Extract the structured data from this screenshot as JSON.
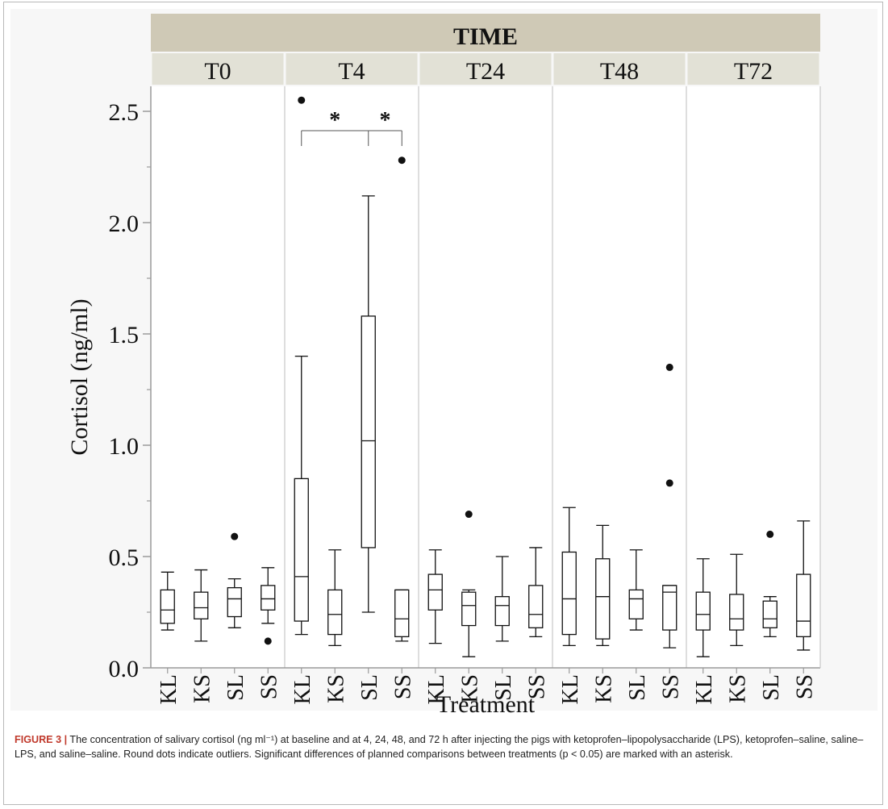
{
  "caption": {
    "label": "FIGURE 3 |",
    "text": "The concentration of salivary cortisol (ng ml⁻¹) at baseline and at 4, 24, 48, and 72 h after injecting the pigs with ketoprofen–lipopolysaccharide (LPS), ketoprofen–saline, saline–LPS, and saline–saline. Round dots indicate outliers. Significant differences of planned comparisons between treatments (p < 0.05) are marked with an asterisk."
  },
  "colors": {
    "header_dark": "#cfc9b6",
    "header_light": "#e2e1d6",
    "axis": "#9a9a9a",
    "box": "#111111"
  },
  "chart_data": {
    "type": "box",
    "title": "TIME",
    "xlabel": "Treatment",
    "ylabel": "Cortisol (ng/ml)",
    "ylim": [
      0,
      2.5
    ],
    "yticks": [
      "0.0",
      "0.5",
      "1.0",
      "1.5",
      "2.0",
      "2.5"
    ],
    "categories": [
      "KL",
      "KS",
      "SL",
      "SS"
    ],
    "panels": [
      {
        "name": "T0",
        "boxes": [
          {
            "cat": "KL",
            "whislo": 0.17,
            "q1": 0.2,
            "med": 0.26,
            "q3": 0.35,
            "whishi": 0.43,
            "fliers": []
          },
          {
            "cat": "KS",
            "whislo": 0.12,
            "q1": 0.22,
            "med": 0.27,
            "q3": 0.34,
            "whishi": 0.44,
            "fliers": []
          },
          {
            "cat": "SL",
            "whislo": 0.18,
            "q1": 0.23,
            "med": 0.31,
            "q3": 0.36,
            "whishi": 0.4,
            "fliers": [
              0.59
            ]
          },
          {
            "cat": "SS",
            "whislo": 0.2,
            "q1": 0.26,
            "med": 0.31,
            "q3": 0.37,
            "whishi": 0.45,
            "fliers": [
              0.12
            ]
          }
        ]
      },
      {
        "name": "T4",
        "boxes": [
          {
            "cat": "KL",
            "whislo": 0.15,
            "q1": 0.21,
            "med": 0.41,
            "q3": 0.85,
            "whishi": 1.4,
            "fliers": [
              2.55
            ]
          },
          {
            "cat": "KS",
            "whislo": 0.1,
            "q1": 0.15,
            "med": 0.24,
            "q3": 0.35,
            "whishi": 0.53,
            "fliers": []
          },
          {
            "cat": "SL",
            "whislo": 0.25,
            "q1": 0.54,
            "med": 1.02,
            "q3": 1.58,
            "whishi": 2.12,
            "fliers": []
          },
          {
            "cat": "SS",
            "whislo": 0.12,
            "q1": 0.14,
            "med": 0.22,
            "q3": 0.35,
            "whishi": 0.35,
            "fliers": [
              2.28
            ]
          }
        ],
        "significance": [
          {
            "from": "KL",
            "to": "SL",
            "label": "*"
          },
          {
            "from": "SL",
            "to": "SS",
            "label": "*"
          }
        ]
      },
      {
        "name": "T24",
        "boxes": [
          {
            "cat": "KL",
            "whislo": 0.11,
            "q1": 0.26,
            "med": 0.35,
            "q3": 0.42,
            "whishi": 0.53,
            "fliers": []
          },
          {
            "cat": "KS",
            "whislo": 0.05,
            "q1": 0.19,
            "med": 0.28,
            "q3": 0.34,
            "whishi": 0.35,
            "fliers": [
              0.69
            ]
          },
          {
            "cat": "SL",
            "whislo": 0.12,
            "q1": 0.19,
            "med": 0.28,
            "q3": 0.32,
            "whishi": 0.5,
            "fliers": []
          },
          {
            "cat": "SS",
            "whislo": 0.14,
            "q1": 0.18,
            "med": 0.24,
            "q3": 0.37,
            "whishi": 0.54,
            "fliers": []
          }
        ]
      },
      {
        "name": "T48",
        "boxes": [
          {
            "cat": "KL",
            "whislo": 0.1,
            "q1": 0.15,
            "med": 0.31,
            "q3": 0.52,
            "whishi": 0.72,
            "fliers": []
          },
          {
            "cat": "KS",
            "whislo": 0.1,
            "q1": 0.13,
            "med": 0.32,
            "q3": 0.49,
            "whishi": 0.64,
            "fliers": []
          },
          {
            "cat": "SL",
            "whislo": 0.17,
            "q1": 0.22,
            "med": 0.31,
            "q3": 0.35,
            "whishi": 0.53,
            "fliers": []
          },
          {
            "cat": "SS",
            "whislo": 0.09,
            "q1": 0.17,
            "med": 0.34,
            "q3": 0.37,
            "whishi": 0.37,
            "fliers": [
              1.35,
              0.83
            ]
          }
        ]
      },
      {
        "name": "T72",
        "boxes": [
          {
            "cat": "KL",
            "whislo": 0.05,
            "q1": 0.17,
            "med": 0.24,
            "q3": 0.34,
            "whishi": 0.49,
            "fliers": []
          },
          {
            "cat": "KS",
            "whislo": 0.1,
            "q1": 0.17,
            "med": 0.22,
            "q3": 0.33,
            "whishi": 0.51,
            "fliers": []
          },
          {
            "cat": "SL",
            "whislo": 0.14,
            "q1": 0.18,
            "med": 0.22,
            "q3": 0.3,
            "whishi": 0.32,
            "fliers": [
              0.6
            ]
          },
          {
            "cat": "SS",
            "whislo": 0.08,
            "q1": 0.14,
            "med": 0.21,
            "q3": 0.42,
            "whishi": 0.66,
            "fliers": []
          }
        ]
      }
    ]
  }
}
